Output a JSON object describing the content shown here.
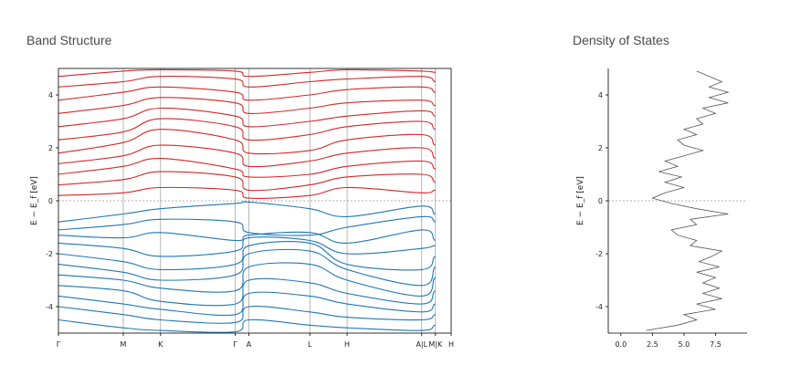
{
  "titles": {
    "band_structure": "Band Structure",
    "dos": "Density of States"
  },
  "chart_data": [
    {
      "type": "line",
      "title": "Band Structure",
      "ylabel": "E − E_f [eV]",
      "xlabel": "",
      "ylim": [
        -5,
        5
      ],
      "yticks": [
        -4,
        -2,
        0,
        2,
        4
      ],
      "fermi_level": 0,
      "high_symmetry_points": [
        {
          "label": "Γ",
          "pos": 0
        },
        {
          "label": "M",
          "pos": 0.165
        },
        {
          "label": "K",
          "pos": 0.26
        },
        {
          "label": "Γ",
          "pos": 0.45
        },
        {
          "label": "A",
          "pos": 0.485
        },
        {
          "label": "L",
          "pos": 0.64
        },
        {
          "label": "H",
          "pos": 0.735
        },
        {
          "label": "A|L",
          "pos": 0.925
        },
        {
          "label": "M|K",
          "pos": 0.96
        },
        {
          "label": "H",
          "pos": 1.0
        }
      ],
      "series": [
        {
          "group": "valence",
          "color": "#1f77b4",
          "values": [
            -0.8,
            -0.5,
            -0.3,
            -0.1,
            -0.05,
            -0.3,
            -0.6,
            -0.2,
            -0.5,
            -0.3,
            -0.9
          ]
        },
        {
          "group": "valence",
          "color": "#1f77b4",
          "values": [
            -1.1,
            -0.9,
            -0.7,
            -0.8,
            -1.2,
            -1.3,
            -1.0,
            -0.6,
            -0.8,
            -0.9,
            -1.4
          ]
        },
        {
          "group": "valence",
          "color": "#1f77b4",
          "values": [
            -1.3,
            -1.4,
            -1.2,
            -1.5,
            -1.3,
            -1.2,
            -1.6,
            -1.1,
            -1.5,
            -1.4,
            -1.6
          ]
        },
        {
          "group": "valence",
          "color": "#1f77b4",
          "values": [
            -1.6,
            -1.8,
            -2.1,
            -1.9,
            -1.4,
            -1.5,
            -2.0,
            -1.8,
            -1.7,
            -2.0,
            -1.9
          ]
        },
        {
          "group": "valence",
          "color": "#1f77b4",
          "values": [
            -2.0,
            -2.3,
            -2.6,
            -2.4,
            -1.7,
            -1.6,
            -2.4,
            -2.6,
            -2.1,
            -2.3,
            -2.2
          ]
        },
        {
          "group": "valence",
          "color": "#1f77b4",
          "values": [
            -2.4,
            -2.7,
            -3.0,
            -2.8,
            -2.0,
            -1.9,
            -2.6,
            -3.2,
            -2.5,
            -2.8,
            -2.6
          ]
        },
        {
          "group": "valence",
          "color": "#1f77b4",
          "values": [
            -2.8,
            -3.0,
            -3.3,
            -3.4,
            -2.5,
            -2.4,
            -3.0,
            -3.6,
            -2.9,
            -3.2,
            -3.1
          ]
        },
        {
          "group": "valence",
          "color": "#1f77b4",
          "values": [
            -3.2,
            -3.4,
            -3.8,
            -3.9,
            -3.0,
            -3.1,
            -3.5,
            -3.9,
            -3.4,
            -3.6,
            -3.5
          ]
        },
        {
          "group": "valence",
          "color": "#1f77b4",
          "values": [
            -3.6,
            -3.9,
            -4.1,
            -4.3,
            -3.5,
            -3.6,
            -3.9,
            -4.2,
            -3.9,
            -4.0,
            -3.9
          ]
        },
        {
          "group": "valence",
          "color": "#1f77b4",
          "values": [
            -4.0,
            -4.3,
            -4.5,
            -4.6,
            -4.0,
            -4.2,
            -4.4,
            -4.5,
            -4.3,
            -4.4,
            -4.4
          ]
        },
        {
          "group": "valence",
          "color": "#1f77b4",
          "values": [
            -4.5,
            -4.8,
            -4.9,
            -4.95,
            -4.5,
            -4.7,
            -4.8,
            -4.9,
            -4.7,
            -4.8,
            -4.8
          ]
        },
        {
          "group": "conduction",
          "color": "#d62728",
          "values": [
            0.2,
            0.3,
            0.5,
            0.4,
            0.1,
            0.2,
            0.5,
            0.3,
            0.4,
            0.2,
            0.3
          ]
        },
        {
          "group": "conduction",
          "color": "#d62728",
          "values": [
            0.6,
            0.8,
            1.1,
            0.9,
            0.4,
            0.6,
            0.9,
            1.0,
            0.7,
            0.8,
            0.9
          ]
        },
        {
          "group": "conduction",
          "color": "#d62728",
          "values": [
            1.0,
            1.3,
            1.6,
            1.2,
            0.9,
            1.0,
            1.3,
            1.5,
            1.2,
            1.3,
            1.4
          ]
        },
        {
          "group": "conduction",
          "color": "#d62728",
          "values": [
            1.4,
            1.7,
            2.1,
            1.8,
            1.3,
            1.5,
            1.8,
            2.0,
            1.6,
            1.8,
            1.9
          ]
        },
        {
          "group": "conduction",
          "color": "#d62728",
          "values": [
            1.8,
            2.2,
            2.7,
            2.3,
            1.8,
            1.9,
            2.3,
            2.5,
            2.1,
            2.4,
            2.3
          ]
        },
        {
          "group": "conduction",
          "color": "#d62728",
          "values": [
            2.3,
            2.6,
            3.1,
            2.8,
            2.3,
            2.5,
            2.8,
            3.0,
            2.7,
            2.9,
            2.8
          ]
        },
        {
          "group": "conduction",
          "color": "#d62728",
          "values": [
            2.8,
            3.1,
            3.5,
            3.2,
            2.8,
            3.0,
            3.2,
            3.4,
            3.2,
            3.3,
            3.2
          ]
        },
        {
          "group": "conduction",
          "color": "#d62728",
          "values": [
            3.3,
            3.6,
            3.9,
            3.7,
            3.3,
            3.5,
            3.7,
            3.8,
            3.6,
            3.8,
            3.7
          ]
        },
        {
          "group": "conduction",
          "color": "#d62728",
          "values": [
            3.8,
            4.1,
            4.3,
            4.1,
            3.8,
            4.0,
            4.2,
            4.3,
            4.1,
            4.2,
            4.1
          ]
        },
        {
          "group": "conduction",
          "color": "#d62728",
          "values": [
            4.3,
            4.5,
            4.7,
            4.6,
            4.3,
            4.5,
            4.6,
            4.7,
            4.5,
            4.6,
            4.5
          ]
        },
        {
          "group": "conduction",
          "color": "#d62728",
          "values": [
            4.7,
            4.9,
            4.95,
            4.9,
            4.7,
            4.85,
            4.95,
            4.9,
            4.85,
            4.9,
            4.9
          ]
        }
      ]
    },
    {
      "type": "line",
      "title": "Density of States",
      "ylabel": "E − E_f [eV]",
      "xlabel": "",
      "xlim": [
        -1,
        10
      ],
      "xticks": [
        0.0,
        2.5,
        5.0,
        7.5
      ],
      "ylim": [
        -5,
        5
      ],
      "yticks": [
        -4,
        -2,
        0,
        2,
        4
      ],
      "fermi_level": 0,
      "series": [
        {
          "color": "#555555",
          "energy": [
            -4.9,
            -4.7,
            -4.5,
            -4.3,
            -4.1,
            -3.9,
            -3.7,
            -3.5,
            -3.3,
            -3.1,
            -2.9,
            -2.7,
            -2.5,
            -2.3,
            -2.1,
            -1.9,
            -1.7,
            -1.5,
            -1.3,
            -1.1,
            -0.9,
            -0.7,
            -0.5,
            -0.3,
            -0.1,
            0.1,
            0.3,
            0.5,
            0.7,
            0.9,
            1.1,
            1.3,
            1.5,
            1.7,
            1.9,
            2.1,
            2.3,
            2.5,
            2.7,
            2.9,
            3.1,
            3.3,
            3.5,
            3.7,
            3.9,
            4.1,
            4.3,
            4.5,
            4.7,
            4.9
          ],
          "dos": [
            2.0,
            4.5,
            6.0,
            5.0,
            7.5,
            6.0,
            8.0,
            6.5,
            7.8,
            6.5,
            7.5,
            6.0,
            7.8,
            6.2,
            7.2,
            8.0,
            5.5,
            6.0,
            4.5,
            4.0,
            6.0,
            5.5,
            8.5,
            6.0,
            4.0,
            2.5,
            3.5,
            5.0,
            3.5,
            4.8,
            3.0,
            4.5,
            3.5,
            5.0,
            6.5,
            5.0,
            4.5,
            6.0,
            5.0,
            6.5,
            6.0,
            7.5,
            6.5,
            8.5,
            7.0,
            8.5,
            7.0,
            8.0,
            7.0,
            6.0
          ]
        }
      ]
    }
  ]
}
